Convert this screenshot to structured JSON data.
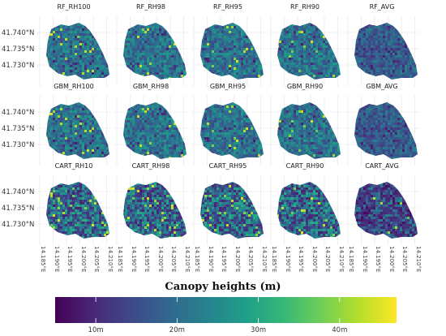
{
  "figure": {
    "panels": [
      {
        "title": "RF_RH100",
        "variant": 0
      },
      {
        "title": "RF_RH98",
        "variant": 0
      },
      {
        "title": "RF_RH95",
        "variant": 0
      },
      {
        "title": "RF_RH90",
        "variant": 0
      },
      {
        "title": "RF_AVG",
        "variant": 1
      },
      {
        "title": "GBM_RH100",
        "variant": 0
      },
      {
        "title": "GBM_RH98",
        "variant": 0
      },
      {
        "title": "GBM_RH95",
        "variant": 0
      },
      {
        "title": "GBM_RH90",
        "variant": 0
      },
      {
        "title": "GBM_AVG",
        "variant": 1
      },
      {
        "title": "CART_RH10",
        "variant": 2
      },
      {
        "title": "CART_RH98",
        "variant": 2
      },
      {
        "title": "CART_RH95",
        "variant": 2
      },
      {
        "title": "CART_RH90",
        "variant": 2
      },
      {
        "title": "CART_AVG",
        "variant": 3
      }
    ],
    "lat_labels": [
      "41.740°N",
      "41.735°N",
      "41.730°N"
    ],
    "lon_labels": [
      "14.185°E",
      "14.190°E",
      "14.195°E",
      "14.200°E",
      "14.205°E",
      "14.210°E"
    ],
    "legend": {
      "title": "Canopy heights (m)",
      "min": 5,
      "max": 47,
      "ticks": [
        {
          "value": 10,
          "label": "10m"
        },
        {
          "value": 20,
          "label": "20m"
        },
        {
          "value": 30,
          "label": "30m"
        },
        {
          "value": 40,
          "label": "40m"
        }
      ],
      "colors": [
        "#440154",
        "#482878",
        "#3e4989",
        "#31688e",
        "#26828e",
        "#1f9e89",
        "#35b779",
        "#6ece58",
        "#b5de2b",
        "#fde725"
      ]
    },
    "gridline_color": "#e3e3e3"
  }
}
